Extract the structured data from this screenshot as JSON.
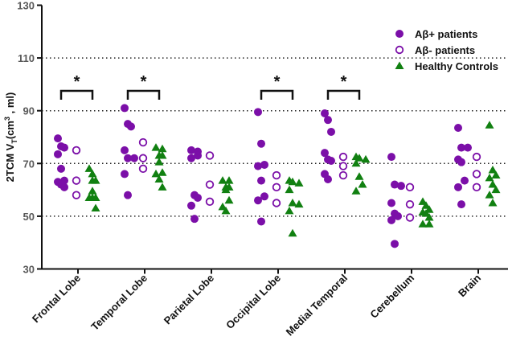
{
  "chart_data": {
    "type": "scatter",
    "title": "",
    "ylabel": "2TCM V",
    "ylabel_sub": "T",
    "ylabel_rest": "(cm",
    "ylabel_sup": "3",
    "ylabel_end": " , ml)",
    "ylim": [
      30,
      130
    ],
    "yticks": [
      30,
      50,
      70,
      90,
      110,
      130
    ],
    "gridlines": [
      50,
      70,
      90,
      110
    ],
    "legend_position": "top-right",
    "categories": [
      "Frontal Lobe",
      "Temporal Lobe",
      "Parietal Lobe",
      "Occipital Lobe",
      "Medial Temporal",
      "Cerebellum",
      "Brain"
    ],
    "significance": [
      "*",
      "*",
      "",
      "*",
      "*",
      "",
      ""
    ],
    "series": [
      {
        "name": "Aβ+ patients",
        "marker": "filled-circle",
        "color": "#7B0FA8",
        "values": [
          [
            79.5,
            76.5,
            76,
            73.5,
            68,
            63.5,
            63,
            62,
            61
          ],
          [
            91,
            85,
            84,
            75,
            72,
            72,
            66,
            58
          ],
          [
            75,
            74.5,
            73,
            72,
            58,
            57,
            54,
            49
          ],
          [
            89.5,
            77.5,
            69.5,
            69,
            63.5,
            57.5,
            56,
            48
          ],
          [
            89,
            86.5,
            82,
            74,
            71.5,
            71,
            66,
            64
          ],
          [
            72.5,
            62,
            61.5,
            55,
            51,
            50,
            48.5,
            39.5
          ],
          [
            83.5,
            76,
            76,
            71.5,
            70.5,
            63.5,
            61,
            54.5
          ]
        ]
      },
      {
        "name": "Aβ- patients",
        "marker": "open-circle",
        "color": "#7B0FA8",
        "values": [
          [
            75,
            63.5,
            58
          ],
          [
            78,
            72,
            68
          ],
          [
            73,
            62,
            55.5
          ],
          [
            65.5,
            61,
            55
          ],
          [
            72.5,
            69,
            65.5
          ],
          [
            61,
            54.5,
            49.5
          ],
          [
            72.5,
            66,
            61
          ]
        ]
      },
      {
        "name": "Healthy Controls",
        "marker": "triangle",
        "color": "#118011",
        "values": [
          [
            68,
            66,
            63.5,
            63.5,
            59.5,
            57,
            57,
            57,
            53
          ],
          [
            76,
            75.5,
            73,
            73,
            70.5,
            66.5,
            66,
            64,
            61
          ],
          [
            63.5,
            63.5,
            61,
            61,
            60,
            56,
            53.5,
            52
          ],
          [
            63.5,
            63,
            62.5,
            60,
            55,
            54.5,
            52,
            43.5
          ],
          [
            72.5,
            72,
            71.5,
            70,
            65,
            62,
            59.5
          ],
          [
            55.5,
            54,
            52.5,
            51.5,
            51,
            49.5,
            47,
            47
          ],
          [
            84.5,
            67.5,
            65.5,
            64.5,
            62,
            60,
            58,
            55
          ]
        ]
      }
    ]
  }
}
